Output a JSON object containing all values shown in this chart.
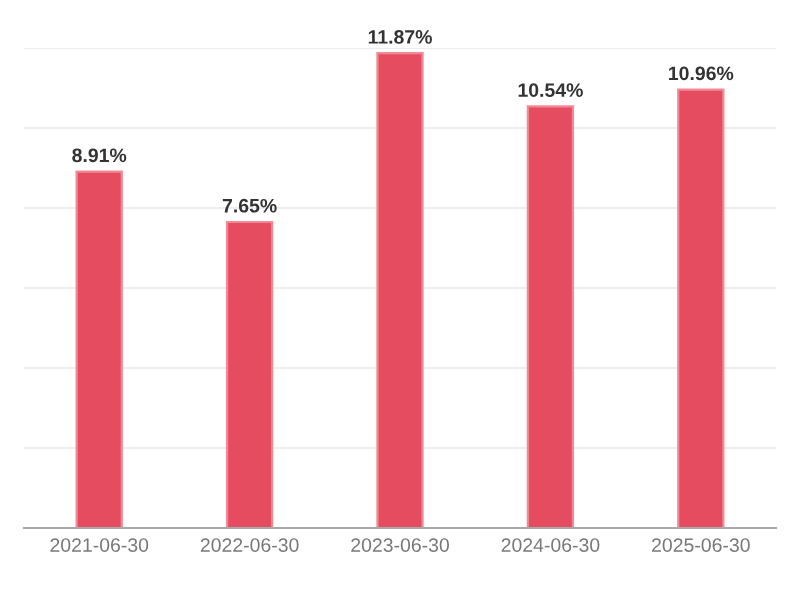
{
  "chart_data": {
    "type": "bar",
    "categories": [
      "2021-06-30",
      "2022-06-30",
      "2023-06-30",
      "2024-06-30",
      "2025-06-30"
    ],
    "values": [
      8.91,
      7.65,
      11.87,
      10.54,
      10.96
    ],
    "color": "#e64c5f",
    "value_labels": [
      "8.91%",
      "7.65%",
      "11.87%",
      "10.54%",
      "10.96%"
    ],
    "ylim": [
      0,
      12
    ],
    "yticks": [
      {
        "value": 0,
        "label": null
      },
      {
        "value": 2,
        "label": null
      },
      {
        "value": 4,
        "label": null
      },
      {
        "value": 6,
        "label": null
      },
      {
        "value": 8,
        "label": null
      },
      {
        "value": 10,
        "label": null
      },
      {
        "value": 12,
        "label": null
      }
    ],
    "grid": "y"
  }
}
